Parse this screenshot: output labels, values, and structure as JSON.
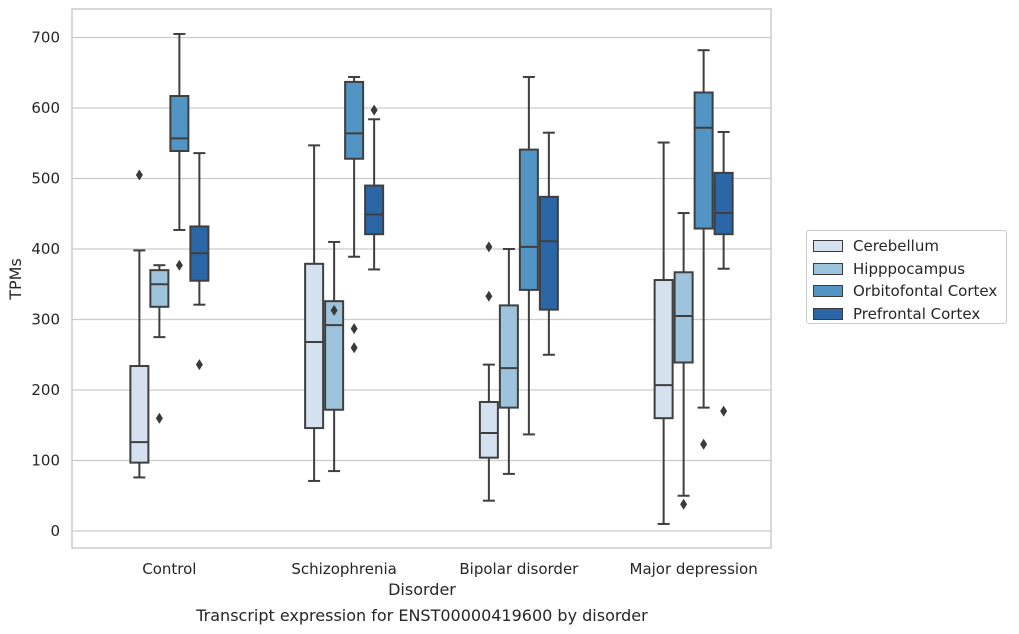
{
  "chart_data": {
    "type": "box",
    "title": "Transcript expression for ENST00000419600 by disorder",
    "xlabel": "Disorder",
    "ylabel": "TPMs",
    "ylim": [
      -23,
      740
    ],
    "yticks": [
      0,
      100,
      200,
      300,
      400,
      500,
      600,
      700
    ],
    "grid": "horizontal",
    "legend_position": "right",
    "categories": [
      "Control",
      "Schizophrenia",
      "Bipolar disorder",
      "Major depression"
    ],
    "series": [
      {
        "name": "Cerebellum",
        "color": "#d4e2f0",
        "boxes": [
          {
            "whisker_low": 76,
            "q1": 97,
            "median": 126,
            "q3": 234,
            "whisker_high": 398,
            "outliers": [
              505
            ]
          },
          {
            "whisker_low": 71,
            "q1": 146,
            "median": 268,
            "q3": 379,
            "whisker_high": 547,
            "outliers": []
          },
          {
            "whisker_low": 43,
            "q1": 104,
            "median": 139,
            "q3": 183,
            "whisker_high": 236,
            "outliers": [
              403,
              333
            ]
          },
          {
            "whisker_low": 10,
            "q1": 160,
            "median": 207,
            "q3": 356,
            "whisker_high": 551,
            "outliers": []
          }
        ]
      },
      {
        "name": "Hipppocampus",
        "color": "#9ec3dc",
        "boxes": [
          {
            "whisker_low": 275,
            "q1": 318,
            "median": 350,
            "q3": 370,
            "whisker_high": 377,
            "outliers": [
              160
            ]
          },
          {
            "whisker_low": 85,
            "q1": 172,
            "median": 292,
            "q3": 326,
            "whisker_high": 410,
            "outliers": [
              313
            ]
          },
          {
            "whisker_low": 81,
            "q1": 175,
            "median": 231,
            "q3": 320,
            "whisker_high": 400,
            "outliers": []
          },
          {
            "whisker_low": 50,
            "q1": 239,
            "median": 305,
            "q3": 367,
            "whisker_high": 451,
            "outliers": [
              38
            ]
          }
        ]
      },
      {
        "name": "Orbitofontal Cortex",
        "color": "#5294c3",
        "boxes": [
          {
            "whisker_low": 427,
            "q1": 539,
            "median": 557,
            "q3": 617,
            "whisker_high": 705,
            "outliers": [
              377
            ]
          },
          {
            "whisker_low": 389,
            "q1": 528,
            "median": 564,
            "q3": 637,
            "whisker_high": 644,
            "outliers": [
              287,
              260
            ]
          },
          {
            "whisker_low": 137,
            "q1": 342,
            "median": 403,
            "q3": 541,
            "whisker_high": 644,
            "outliers": []
          },
          {
            "whisker_low": 175,
            "q1": 429,
            "median": 572,
            "q3": 622,
            "whisker_high": 682,
            "outliers": [
              123
            ]
          }
        ]
      },
      {
        "name": "Prefrontal Cortex",
        "color": "#2b66a7",
        "boxes": [
          {
            "whisker_low": 321,
            "q1": 355,
            "median": 394,
            "q3": 432,
            "whisker_high": 536,
            "outliers": [
              236
            ]
          },
          {
            "whisker_low": 371,
            "q1": 421,
            "median": 449,
            "q3": 490,
            "whisker_high": 584,
            "outliers": [
              597
            ]
          },
          {
            "whisker_low": 250,
            "q1": 314,
            "median": 411,
            "q3": 474,
            "whisker_high": 565,
            "outliers": []
          },
          {
            "whisker_low": 372,
            "q1": 421,
            "median": 451,
            "q3": 508,
            "whisker_high": 566,
            "outliers": [
              170
            ]
          }
        ]
      }
    ]
  }
}
